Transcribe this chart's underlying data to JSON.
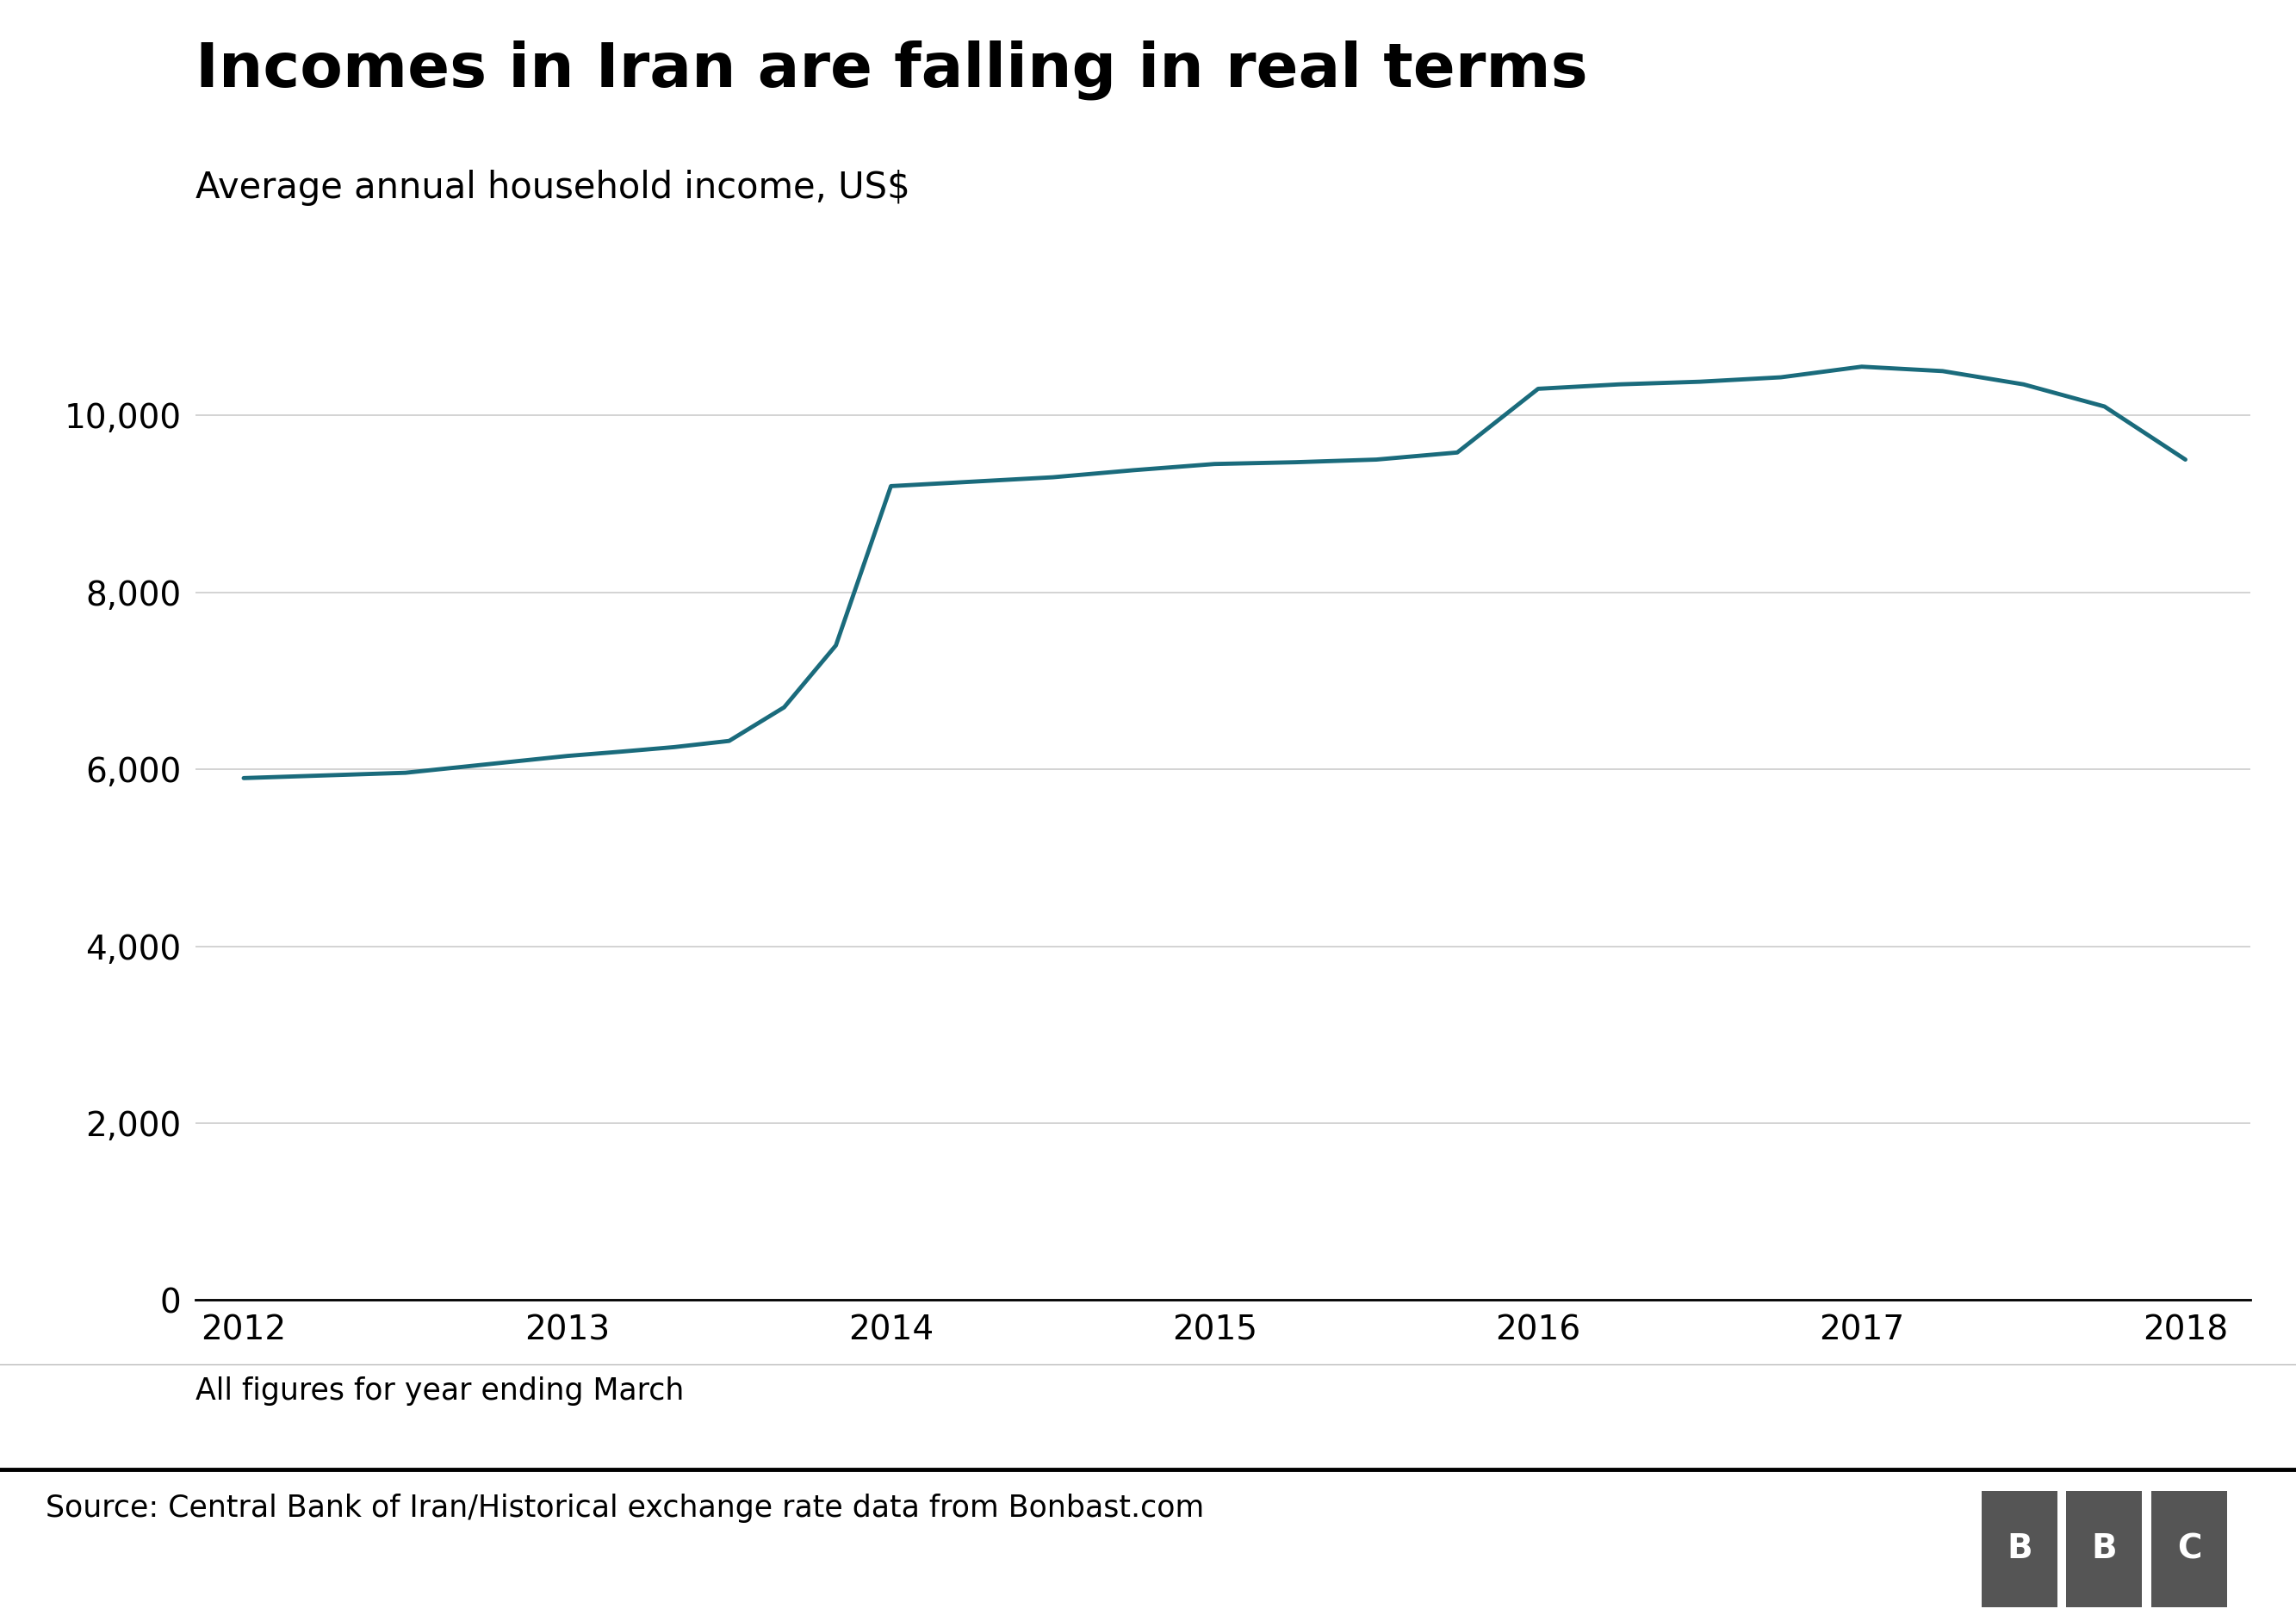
{
  "title": "Incomes in Iran are falling in real terms",
  "subtitle": "Average annual household income, US$",
  "x_values": [
    2012,
    2012.5,
    2013,
    2013.17,
    2013.33,
    2013.5,
    2013.67,
    2013.83,
    2014,
    2014.25,
    2014.5,
    2014.75,
    2015,
    2015.25,
    2015.5,
    2015.75,
    2016,
    2016.25,
    2016.5,
    2016.75,
    2017,
    2017.25,
    2017.5,
    2017.75,
    2018
  ],
  "y_values": [
    5900,
    5960,
    6150,
    6200,
    6250,
    6320,
    6700,
    7400,
    9200,
    9250,
    9300,
    9380,
    9450,
    9470,
    9500,
    9580,
    10300,
    10350,
    10380,
    10430,
    10550,
    10500,
    10350,
    10100,
    9500
  ],
  "line_color": "#1a6b7c",
  "line_width": 3.5,
  "background_color": "#ffffff",
  "grid_color": "#cccccc",
  "ylim": [
    0,
    11500
  ],
  "yticks": [
    0,
    2000,
    4000,
    6000,
    8000,
    10000
  ],
  "xlim": [
    2011.85,
    2018.2
  ],
  "xticks": [
    2012,
    2013,
    2014,
    2015,
    2016,
    2017,
    2018
  ],
  "footnote": "All figures for year ending March",
  "source": "Source: Central Bank of Iran/Historical exchange rate data from Bonbast.com",
  "title_fontsize": 52,
  "subtitle_fontsize": 30,
  "tick_fontsize": 28,
  "footnote_fontsize": 25,
  "source_fontsize": 25,
  "axis_color": "#000000",
  "text_color": "#000000",
  "footer_line_color": "#000000",
  "bbc_box_color": "#555555",
  "bbc_text_color": "#ffffff"
}
